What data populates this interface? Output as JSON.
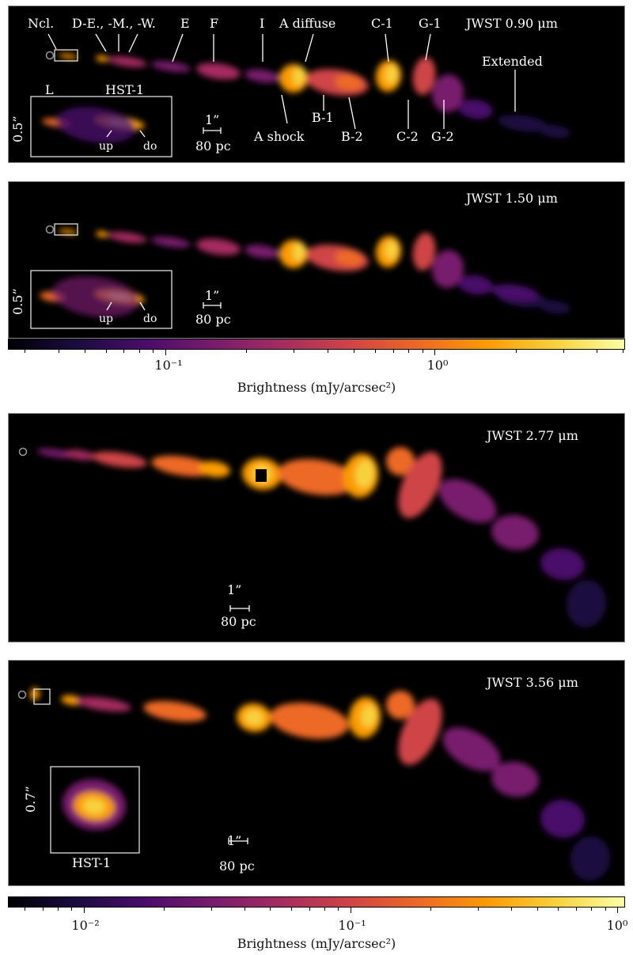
{
  "panels": [
    {
      "title": "JWST 0.90 μm",
      "labels": {
        "ncl": "Ncl.",
        "de": "D-E., -M., -W.",
        "e": "E",
        "f": "F",
        "i": "I",
        "a_diffuse": "A diffuse",
        "c1": "C-1",
        "g1": "G-1",
        "extended": "Extended",
        "a_shock": "A shock",
        "b1": "B-1",
        "b2": "B-2",
        "c2": "C-2",
        "g2": "G-2"
      },
      "inset": {
        "l": "L",
        "hst": "HST-1",
        "up": "up",
        "do": "do",
        "size": "0.5”"
      },
      "scale": {
        "arcsec": "1”",
        "pc": "80 pc"
      }
    },
    {
      "title": "JWST 1.50 μm",
      "inset": {
        "up": "up",
        "do": "do",
        "size": "0.5”"
      },
      "scale": {
        "arcsec": "1”",
        "pc": "80 pc"
      }
    },
    {
      "title": "JWST 2.77 μm",
      "scale": {
        "arcsec": "1”",
        "pc": "80 pc"
      }
    },
    {
      "title": "JWST 3.56 μm",
      "inset": {
        "hst": "HST-1",
        "size": "0.7”"
      },
      "scale": {
        "arcsec": "1”",
        "pc": "80 pc"
      }
    }
  ],
  "colorbars": [
    {
      "label": "Brightness (mJy/arcsec²)",
      "scale": "log",
      "colormap": "inferno",
      "range": [
        0.026,
        5.1
      ],
      "ticks": [
        {
          "text": "10⁻¹",
          "value": 0.1
        },
        {
          "text": "10⁰",
          "value": 1
        }
      ]
    },
    {
      "label": "Brightness (mJy/arcsec²)",
      "scale": "log",
      "colormap": "inferno",
      "range": [
        0.0052,
        1.07
      ],
      "ticks": [
        {
          "text": "10⁻²",
          "value": 0.01
        },
        {
          "text": "10⁻¹",
          "value": 0.1
        },
        {
          "text": "10⁰",
          "value": 1
        }
      ]
    }
  ],
  "colors": {
    "background": "#000000",
    "annotation": "#ffffff",
    "colormap_stops": [
      "#000004",
      "#1b0c41",
      "#4a0c6b",
      "#781c6d",
      "#a52c60",
      "#cf4446",
      "#ed6925",
      "#fb9b06",
      "#f7d13d",
      "#fcffa4"
    ]
  }
}
